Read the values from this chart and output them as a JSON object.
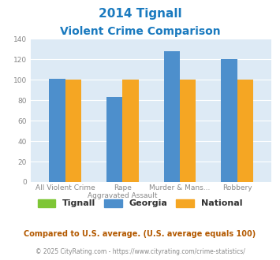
{
  "title_line1": "2014 Tignall",
  "title_line2": "Violent Crime Comparison",
  "title_color": "#1a7abf",
  "categories_top": [
    "",
    "Rape",
    "Murder & Mans...",
    ""
  ],
  "categories_bot": [
    "All Violent Crime",
    "Aggravated Assault",
    "",
    "Robbery"
  ],
  "tignall_values": [
    0,
    0,
    0,
    0
  ],
  "georgia_values": [
    101,
    83,
    128,
    120
  ],
  "national_values": [
    100,
    100,
    100,
    100
  ],
  "tignall_color": "#7ec636",
  "georgia_color": "#4d8fcc",
  "national_color": "#f5a623",
  "bg_color": "#ddeaf5",
  "ylim": [
    0,
    140
  ],
  "yticks": [
    0,
    20,
    40,
    60,
    80,
    100,
    120,
    140
  ],
  "legend_labels": [
    "Tignall",
    "Georgia",
    "National"
  ],
  "footer_text1": "Compared to U.S. average. (U.S. average equals 100)",
  "footer_text1_color": "#b35900",
  "footer_copyright": "© 2025 CityRating.com - ",
  "footer_url": "https://www.cityrating.com/crime-statistics/",
  "footer_gray_color": "#888888",
  "footer_url_color": "#4d8fcc",
  "bar_width": 0.28,
  "grid_color": "#c8d8e8",
  "tick_label_color": "#888888"
}
